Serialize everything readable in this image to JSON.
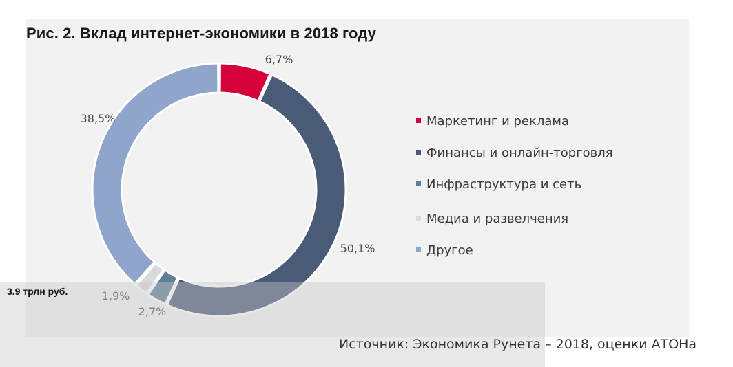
{
  "title": "Рис. 2. Вклад интернет-экономики в 2018 году",
  "total_label": "3.9 трлн руб.",
  "source": "Источник: Экономика Рунета – 2018, оценки АТОНа",
  "chart_data": {
    "type": "pie",
    "title": "Рис. 2. Вклад интернет-экономики в 2018 году",
    "style": "donut",
    "legend_position": "right",
    "slices": [
      {
        "name": "Маркетинг и реклама",
        "value": 6.7,
        "label": "6,7%",
        "color": "#d6003b"
      },
      {
        "name": "Финансы и онлайн-торговля",
        "value": 50.1,
        "label": "50,1%",
        "color": "#4a5b78"
      },
      {
        "name": "Инфраструктура и сеть",
        "value": 2.7,
        "label": "2,7%",
        "color": "#5f7f97"
      },
      {
        "name": "Медиа и развелчения",
        "value": 1.9,
        "label": "1,9%",
        "color": "#d9dadd"
      },
      {
        "name": "Другое",
        "value": 38.5,
        "label": "38,5%",
        "color": "#8fa5cb"
      }
    ]
  }
}
